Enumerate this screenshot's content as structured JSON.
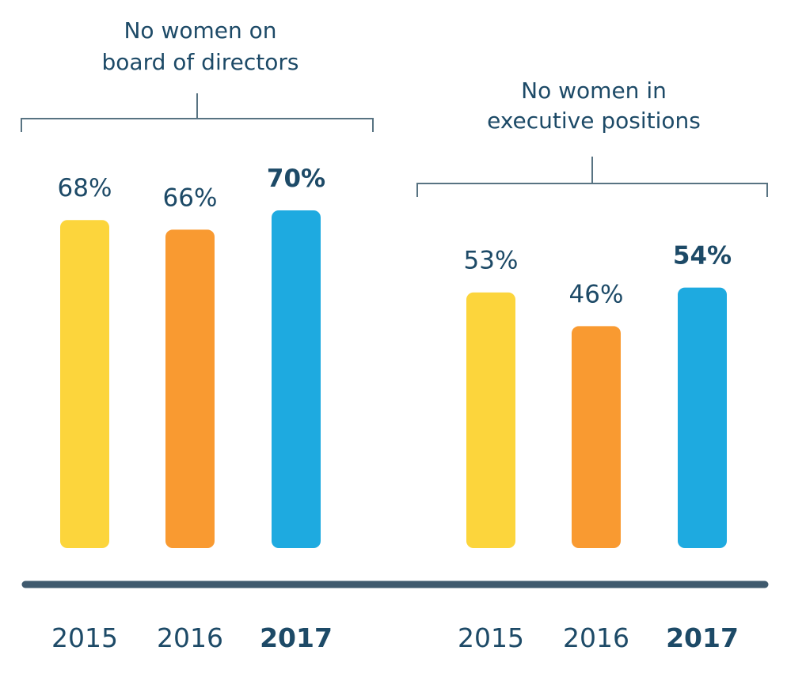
{
  "chart_data": {
    "type": "bar",
    "units": "%",
    "groups": [
      {
        "title_lines": [
          "No women on",
          "board of directors"
        ],
        "categories": [
          "2015",
          "2016",
          "2017"
        ],
        "values": [
          68,
          66,
          70
        ],
        "value_labels": [
          "68%",
          "66%",
          "70%"
        ],
        "highlight_index": 2
      },
      {
        "title_lines": [
          "No women in",
          "executive positions"
        ],
        "categories": [
          "2015",
          "2016",
          "2017"
        ],
        "values": [
          53,
          46,
          54
        ],
        "value_labels": [
          "53%",
          "46%",
          "54%"
        ],
        "highlight_index": 2
      }
    ],
    "colors": {
      "2015": "#fcd53c",
      "2016": "#f99a31",
      "2017": "#1eaae0"
    },
    "text_color": "#1d4a67",
    "baseline_color": "#3f5a6e",
    "bracket_color": "#587382",
    "grid": false,
    "legend": "none"
  }
}
